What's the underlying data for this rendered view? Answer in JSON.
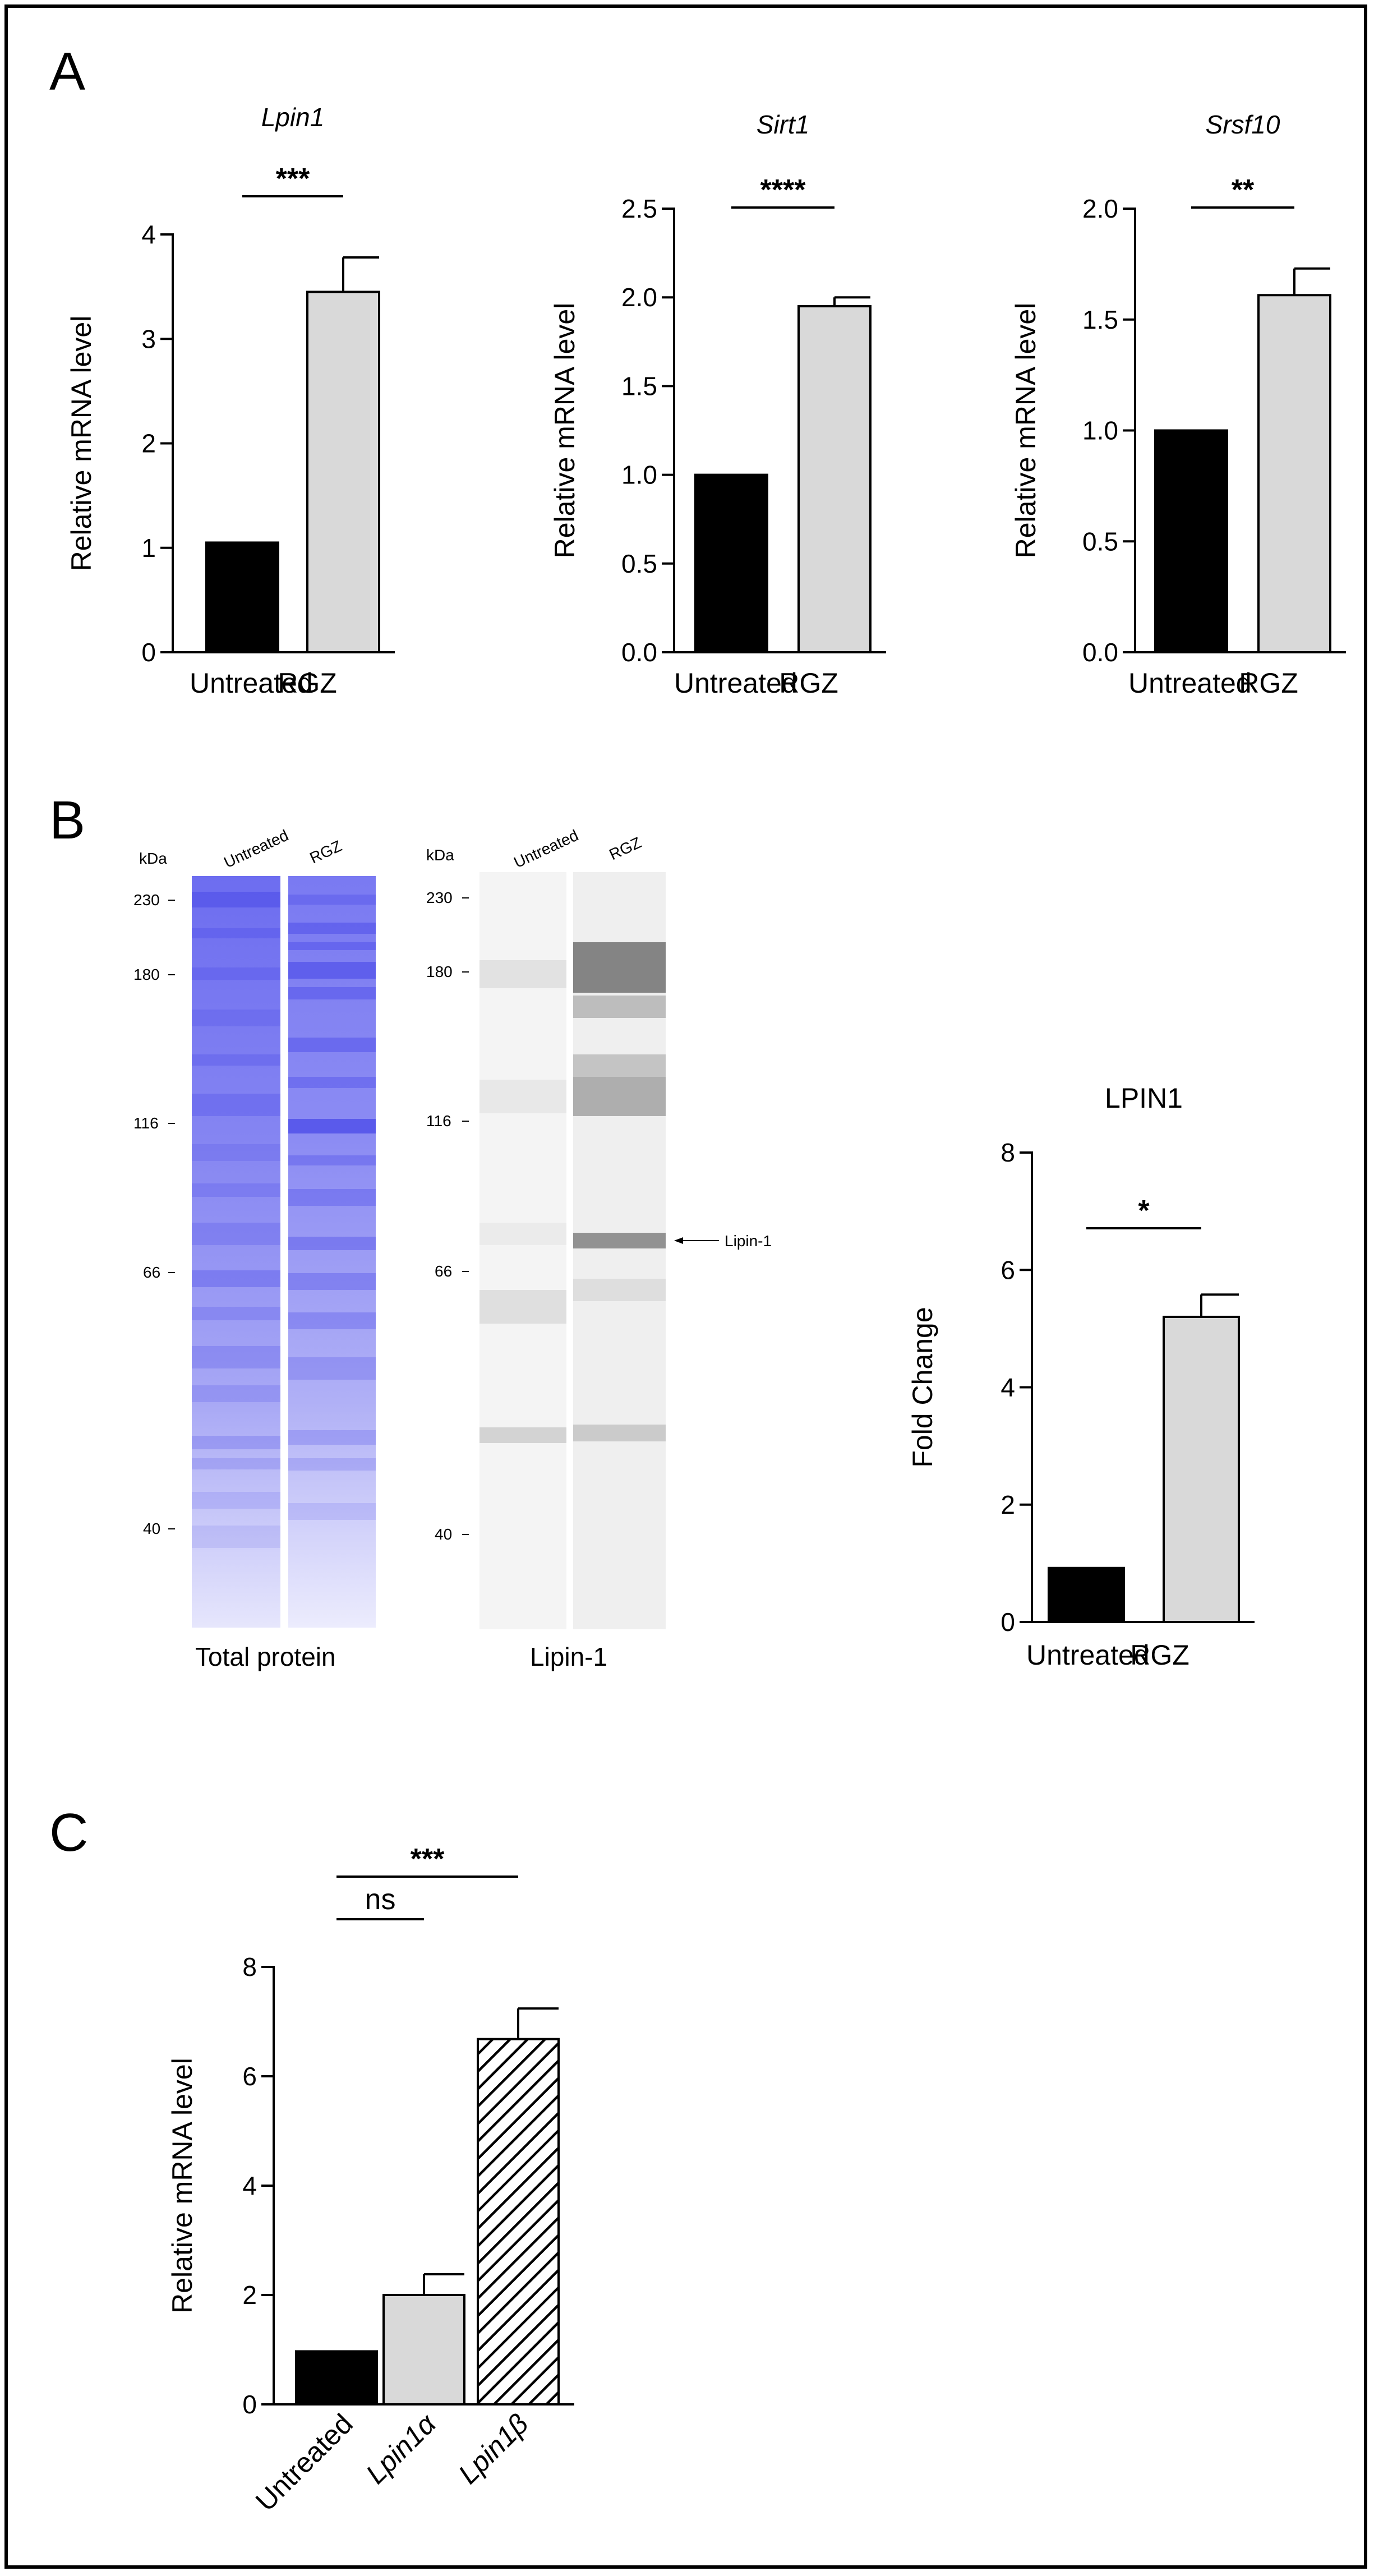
{
  "panel_letters": {
    "a": "A",
    "b": "B",
    "c": "C"
  },
  "colors": {
    "untreated_bar": "#000000",
    "rgz_bar": "#d9d9d9",
    "bar_edge": "#000000",
    "total_protein_lane": "#6d6df0",
    "lipin_band": "#606060"
  },
  "chart_data": [
    {
      "type": "bar",
      "title": "Lpin1",
      "title_italic": true,
      "ylabel": "Relative mRNA level",
      "categories": [
        "Untreated",
        "RGZ"
      ],
      "values": [
        1.05,
        3.45
      ],
      "errors": [
        0,
        0.33
      ],
      "ylim": [
        0,
        4
      ],
      "yticks": [
        "0",
        "1",
        "2",
        "3",
        "4"
      ],
      "significance": [
        {
          "from": 0,
          "to": 1,
          "label": "***"
        }
      ]
    },
    {
      "type": "bar",
      "title": "Sirt1",
      "title_italic": true,
      "ylabel": "Relative mRNA level",
      "categories": [
        "Untreated",
        "RGZ"
      ],
      "values": [
        1.0,
        1.95
      ],
      "errors": [
        0,
        0.05
      ],
      "ylim": [
        0,
        2.5
      ],
      "yticks": [
        "0.0",
        "0.5",
        "1.0",
        "1.5",
        "2.0",
        "2.5"
      ],
      "significance": [
        {
          "from": 0,
          "to": 1,
          "label": "****"
        }
      ]
    },
    {
      "type": "bar",
      "title": "Srsf10",
      "title_italic": true,
      "ylabel": "Relative mRNA level",
      "categories": [
        "Untreated",
        "RGZ"
      ],
      "values": [
        1.0,
        1.61
      ],
      "errors": [
        0,
        0.12
      ],
      "ylim": [
        0,
        2.0
      ],
      "yticks": [
        "0.0",
        "0.5",
        "1.0",
        "1.5",
        "2.0"
      ],
      "significance": [
        {
          "from": 0,
          "to": 1,
          "label": "**"
        }
      ]
    },
    {
      "type": "bar",
      "title": "LPIN1",
      "title_italic": false,
      "ylabel": "Fold Change",
      "categories": [
        "Untreated",
        "RGZ"
      ],
      "values": [
        0.92,
        5.2
      ],
      "errors": [
        0,
        0.38
      ],
      "ylim": [
        0,
        8
      ],
      "yticks": [
        "0",
        "2",
        "4",
        "6",
        "8"
      ],
      "significance": [
        {
          "from": 0,
          "to": 1,
          "label": "*"
        }
      ]
    },
    {
      "type": "bar",
      "title": "",
      "ylabel": "Relative mRNA level",
      "categories": [
        "Untreated",
        "Lpin1α",
        "Lpin1β"
      ],
      "category_italic": [
        false,
        true,
        true
      ],
      "values": [
        0.97,
        2.0,
        6.68
      ],
      "errors": [
        0,
        0.38,
        0.56
      ],
      "bar_fill": [
        "solid-black",
        "solid-grey",
        "hatched"
      ],
      "ylim": [
        0,
        8
      ],
      "yticks": [
        "0",
        "2",
        "4",
        "6",
        "8"
      ],
      "significance": [
        {
          "from": 0,
          "to": 1,
          "label": "ns"
        },
        {
          "from": 0,
          "to": 2,
          "label": "***"
        }
      ]
    }
  ],
  "blots": {
    "kda_label": "kDa",
    "total_protein": {
      "caption": "Total protein",
      "lanes": [
        "Untreated",
        "RGZ"
      ],
      "markers": [
        "230",
        "180",
        "116",
        "66",
        "40"
      ]
    },
    "lipin": {
      "caption": "Lipin-1",
      "lanes": [
        "Untreated",
        "RGZ"
      ],
      "markers": [
        "230",
        "180",
        "116",
        "66",
        "40"
      ],
      "band_annotation": "Lipin-1"
    }
  }
}
